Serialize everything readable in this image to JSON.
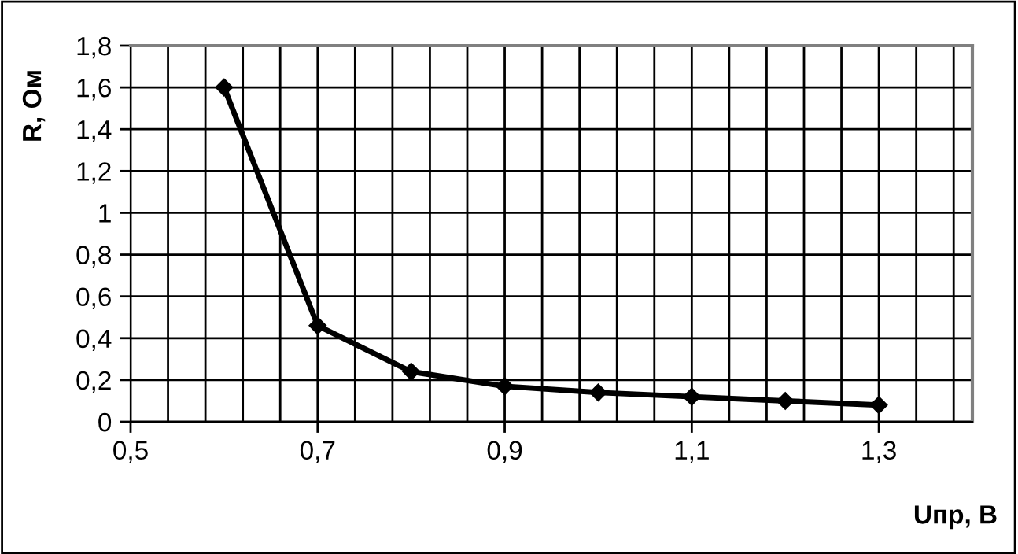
{
  "chart_data": {
    "type": "line",
    "xlabel": "Uпр, В",
    "ylabel": "R, Ом",
    "x": [
      0.6,
      0.7,
      0.8,
      0.9,
      1.0,
      1.1,
      1.2,
      1.3
    ],
    "series": [
      {
        "color": "#000000",
        "values": [
          1.6,
          0.46,
          0.24,
          0.17,
          0.14,
          0.12,
          0.1,
          0.08
        ]
      }
    ],
    "xlim": [
      0.5,
      1.4
    ],
    "xticks": [
      {
        "value": 0.5,
        "label": "0,5"
      },
      {
        "value": 0.54,
        "label": null
      },
      {
        "value": 0.58,
        "label": null
      },
      {
        "value": 0.62,
        "label": null
      },
      {
        "value": 0.66,
        "label": null
      },
      {
        "value": 0.7,
        "label": "0,7"
      },
      {
        "value": 0.74,
        "label": null
      },
      {
        "value": 0.78,
        "label": null
      },
      {
        "value": 0.82,
        "label": null
      },
      {
        "value": 0.86,
        "label": null
      },
      {
        "value": 0.9,
        "label": "0,9"
      },
      {
        "value": 0.94,
        "label": null
      },
      {
        "value": 0.98,
        "label": null
      },
      {
        "value": 1.02,
        "label": null
      },
      {
        "value": 1.06,
        "label": null
      },
      {
        "value": 1.1,
        "label": "1,1"
      },
      {
        "value": 1.14,
        "label": null
      },
      {
        "value": 1.18,
        "label": null
      },
      {
        "value": 1.22,
        "label": null
      },
      {
        "value": 1.26,
        "label": null
      },
      {
        "value": 1.3,
        "label": "1,3"
      },
      {
        "value": 1.34,
        "label": null
      },
      {
        "value": 1.38,
        "label": null
      }
    ],
    "ylim": [
      0,
      1.8
    ],
    "yticks": [
      0,
      {
        "value": 0.2,
        "label": "0,2"
      },
      {
        "value": 0.4,
        "label": "0,4"
      },
      {
        "value": 0.6,
        "label": "0,6"
      },
      {
        "value": 0.8,
        "label": "0,8"
      },
      1,
      {
        "value": 1.2,
        "label": "1,2"
      },
      {
        "value": 1.4,
        "label": "1,4"
      },
      {
        "value": 1.6,
        "label": "1,6"
      },
      {
        "value": 1.8,
        "label": "1,8"
      }
    ],
    "grid": true,
    "marker": "diamond",
    "line_style": "solid",
    "legend": false
  }
}
